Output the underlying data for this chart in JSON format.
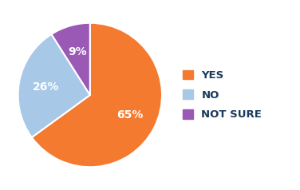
{
  "labels": [
    "YES",
    "NO",
    "NOT SURE"
  ],
  "values": [
    65,
    26,
    9
  ],
  "colors": [
    "#F47A30",
    "#A8C8E8",
    "#9B59B6"
  ],
  "text_labels": [
    "65%",
    "26%",
    "9%"
  ],
  "text_color": "#FFFFFF",
  "legend_text_color": "#1A3A5C",
  "background_color": "#FFFFFF",
  "label_fontsize": 10,
  "legend_fontsize": 9.5,
  "startangle": 90
}
